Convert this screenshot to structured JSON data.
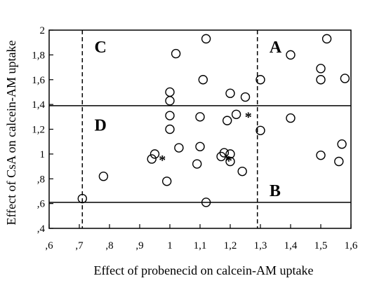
{
  "chart_data": {
    "type": "scatter",
    "xlabel": "Effect of probenecid on calcein-AM uptake",
    "ylabel": "Effect of CsA on calcein-AM uptake",
    "xlim": [
      0.6,
      1.6
    ],
    "ylim": [
      0.4,
      2.0
    ],
    "x_ticks": [
      ",6",
      ",7",
      ",8",
      ",9",
      "1",
      "1,1",
      "1,2",
      "1,3",
      "1,4",
      "1,5",
      "1,6"
    ],
    "y_ticks": [
      ",4",
      ",6",
      ",8",
      "1",
      "1,2",
      "1,4",
      "1,6",
      "1,8",
      "2"
    ],
    "grid": false,
    "reference_lines": {
      "vertical_dashed": [
        0.71,
        1.29
      ],
      "horizontal_solid": [
        0.61,
        1.39
      ]
    },
    "region_labels": [
      {
        "text": "A",
        "x": 1.33,
        "y": 1.82
      },
      {
        "text": "B",
        "x": 1.33,
        "y": 0.66
      },
      {
        "text": "C",
        "x": 0.75,
        "y": 1.82
      },
      {
        "text": "D",
        "x": 0.75,
        "y": 1.19
      }
    ],
    "points": [
      {
        "x": 0.71,
        "y": 0.64
      },
      {
        "x": 0.78,
        "y": 0.82
      },
      {
        "x": 0.94,
        "y": 0.96
      },
      {
        "x": 0.95,
        "y": 1.0
      },
      {
        "x": 0.99,
        "y": 0.78
      },
      {
        "x": 1.0,
        "y": 1.5
      },
      {
        "x": 1.0,
        "y": 1.43
      },
      {
        "x": 1.0,
        "y": 1.31
      },
      {
        "x": 1.0,
        "y": 1.2
      },
      {
        "x": 1.02,
        "y": 1.81
      },
      {
        "x": 1.03,
        "y": 1.05
      },
      {
        "x": 1.09,
        "y": 0.92
      },
      {
        "x": 1.1,
        "y": 1.06
      },
      {
        "x": 1.1,
        "y": 1.3
      },
      {
        "x": 1.11,
        "y": 1.6
      },
      {
        "x": 1.12,
        "y": 1.93
      },
      {
        "x": 1.12,
        "y": 0.61
      },
      {
        "x": 1.17,
        "y": 0.98
      },
      {
        "x": 1.18,
        "y": 1.01
      },
      {
        "x": 1.19,
        "y": 1.27
      },
      {
        "x": 1.2,
        "y": 1.49
      },
      {
        "x": 1.2,
        "y": 1.0
      },
      {
        "x": 1.2,
        "y": 0.94
      },
      {
        "x": 1.22,
        "y": 1.32
      },
      {
        "x": 1.24,
        "y": 0.86
      },
      {
        "x": 1.25,
        "y": 1.46
      },
      {
        "x": 1.3,
        "y": 1.6
      },
      {
        "x": 1.3,
        "y": 1.19
      },
      {
        "x": 1.4,
        "y": 1.8
      },
      {
        "x": 1.4,
        "y": 1.29
      },
      {
        "x": 1.5,
        "y": 1.69
      },
      {
        "x": 1.5,
        "y": 1.6
      },
      {
        "x": 1.5,
        "y": 0.99
      },
      {
        "x": 1.52,
        "y": 1.93
      },
      {
        "x": 1.56,
        "y": 0.94
      },
      {
        "x": 1.57,
        "y": 1.08
      },
      {
        "x": 1.58,
        "y": 1.61
      }
    ],
    "asterisks": [
      {
        "text": "*",
        "x": 0.975,
        "y": 0.97
      },
      {
        "text": "*",
        "x": 1.195,
        "y": 0.965
      },
      {
        "text": "*",
        "x": 1.26,
        "y": 1.32
      }
    ]
  }
}
